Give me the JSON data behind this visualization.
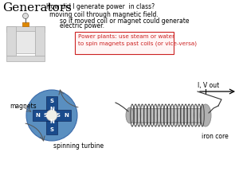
{
  "title": "Generators",
  "subtitle": "How did I generate power  in class?",
  "text1": "moving coil through magnetic field.",
  "text2": "so if moved coil or magnet could generate\nelectric power.",
  "box_text": "Power plants: use steam or water\nto spin magnets past coils (or vice-versa)",
  "label_magnets": "magnets",
  "label_turbine": "spinning turbine",
  "label_iron": "iron core",
  "label_out": "I, V out",
  "magnet_color": "#1a4b8c",
  "circle_color": "#5a8fc0",
  "center_color": "#f0f0e8",
  "bg_color": "#ffffff",
  "box_border": "#cc2222",
  "box_text_color": "#cc2222"
}
